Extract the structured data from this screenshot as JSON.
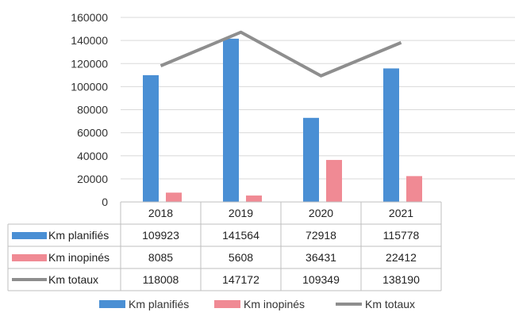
{
  "chart_data": {
    "type": "bar",
    "categories": [
      "2018",
      "2019",
      "2020",
      "2021"
    ],
    "series": [
      {
        "name": "Km planifiés",
        "type": "bar",
        "color": "#4a8fd4",
        "values": [
          109923,
          141564,
          72918,
          115778
        ]
      },
      {
        "name": "Km inopinés",
        "type": "bar",
        "color": "#f08a94",
        "values": [
          8085,
          5608,
          36431,
          22412
        ]
      },
      {
        "name": "Km totaux",
        "type": "line",
        "color": "#8e8e8e",
        "values": [
          118008,
          147172,
          109349,
          138190
        ]
      }
    ],
    "y_ticks": [
      "0",
      "20000",
      "40000",
      "60000",
      "80000",
      "100000",
      "120000",
      "140000",
      "160000"
    ],
    "ylim": [
      0,
      160000
    ],
    "grid": true,
    "legend_position": "bottom",
    "data_table": true
  }
}
